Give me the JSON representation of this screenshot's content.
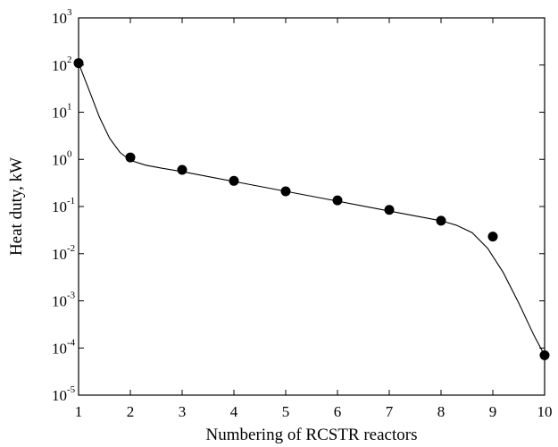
{
  "chart_data": {
    "type": "scatter",
    "title": "",
    "xlabel": "Numbering of RCSTR reactors",
    "ylabel": "Heat duty, kW",
    "xlim": [
      1,
      10
    ],
    "ylim": [
      1e-05,
      1000
    ],
    "yscale": "log",
    "x_ticks": [
      1,
      2,
      3,
      4,
      5,
      6,
      7,
      8,
      9,
      10
    ],
    "y_ticks": [
      {
        "base": "10",
        "exp": "-5",
        "value": 1e-05
      },
      {
        "base": "10",
        "exp": "-4",
        "value": 0.0001
      },
      {
        "base": "10",
        "exp": "-3",
        "value": 0.001
      },
      {
        "base": "10",
        "exp": "-2",
        "value": 0.01
      },
      {
        "base": "10",
        "exp": "-1",
        "value": 0.1
      },
      {
        "base": "10",
        "exp": "0",
        "value": 1
      },
      {
        "base": "10",
        "exp": "1",
        "value": 10
      },
      {
        "base": "10",
        "exp": "2",
        "value": 100
      },
      {
        "base": "10",
        "exp": "3",
        "value": 1000
      }
    ],
    "grid": false,
    "series": [
      {
        "kind": "markers",
        "x": [
          1,
          2,
          3,
          4,
          5,
          6,
          7,
          8,
          9,
          10
        ],
        "y": [
          110,
          1.1,
          0.6,
          0.35,
          0.21,
          0.135,
          0.085,
          0.05,
          0.023,
          7e-05
        ]
      },
      {
        "kind": "fit-line",
        "x": [
          1,
          1.2,
          1.4,
          1.6,
          1.8,
          2.0,
          2.3,
          2.6,
          3,
          4,
          5,
          6,
          7,
          8,
          8.3,
          8.6,
          8.9,
          9.2,
          9.5,
          9.8,
          10
        ],
        "y": [
          110,
          30,
          8,
          2.8,
          1.4,
          0.95,
          0.75,
          0.65,
          0.55,
          0.34,
          0.21,
          0.13,
          0.08,
          0.05,
          0.04,
          0.028,
          0.013,
          0.004,
          0.0009,
          0.00018,
          7e-05
        ]
      }
    ],
    "colors": {
      "marker": "#000000",
      "line": "#000000",
      "axis": "#000000"
    }
  }
}
